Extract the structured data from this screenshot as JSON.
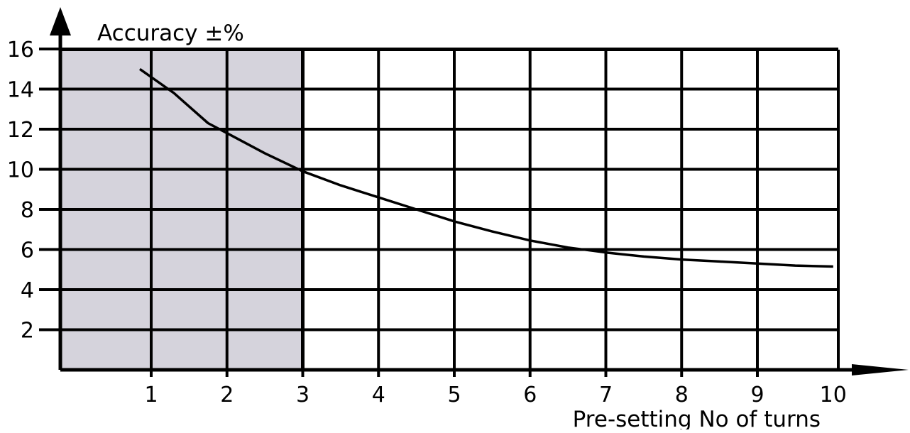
{
  "chart_data": {
    "type": "line",
    "ylabel": "Accuracy ±%",
    "xlabel": "Pre-setting No of turns",
    "x_ticks": [
      "1",
      "2",
      "3",
      "4",
      "5",
      "6",
      "7",
      "8",
      "9",
      "10"
    ],
    "y_ticks": [
      "2",
      "4",
      "6",
      "8",
      "10",
      "12",
      "14",
      "16"
    ],
    "xlim": [
      0,
      10.15
    ],
    "ylim": [
      0,
      16
    ],
    "grid": true,
    "shaded_region": {
      "x_from": 0,
      "x_to": 3,
      "color": "#d5d3dc"
    },
    "series": [
      {
        "color": "#000000",
        "points": [
          {
            "x": 0.85,
            "y": 15.0
          },
          {
            "x": 1.3,
            "y": 13.8
          },
          {
            "x": 1.75,
            "y": 12.3
          },
          {
            "x": 2.0,
            "y": 11.8
          },
          {
            "x": 2.5,
            "y": 10.8
          },
          {
            "x": 3.0,
            "y": 9.9
          },
          {
            "x": 3.5,
            "y": 9.2
          },
          {
            "x": 4.0,
            "y": 8.6
          },
          {
            "x": 4.5,
            "y": 8.0
          },
          {
            "x": 5.0,
            "y": 7.4
          },
          {
            "x": 5.5,
            "y": 6.9
          },
          {
            "x": 6.0,
            "y": 6.45
          },
          {
            "x": 6.5,
            "y": 6.1
          },
          {
            "x": 7.0,
            "y": 5.85
          },
          {
            "x": 7.5,
            "y": 5.65
          },
          {
            "x": 8.0,
            "y": 5.5
          },
          {
            "x": 8.5,
            "y": 5.4
          },
          {
            "x": 9.0,
            "y": 5.3
          },
          {
            "x": 9.5,
            "y": 5.2
          },
          {
            "x": 10.0,
            "y": 5.15
          }
        ]
      }
    ]
  }
}
